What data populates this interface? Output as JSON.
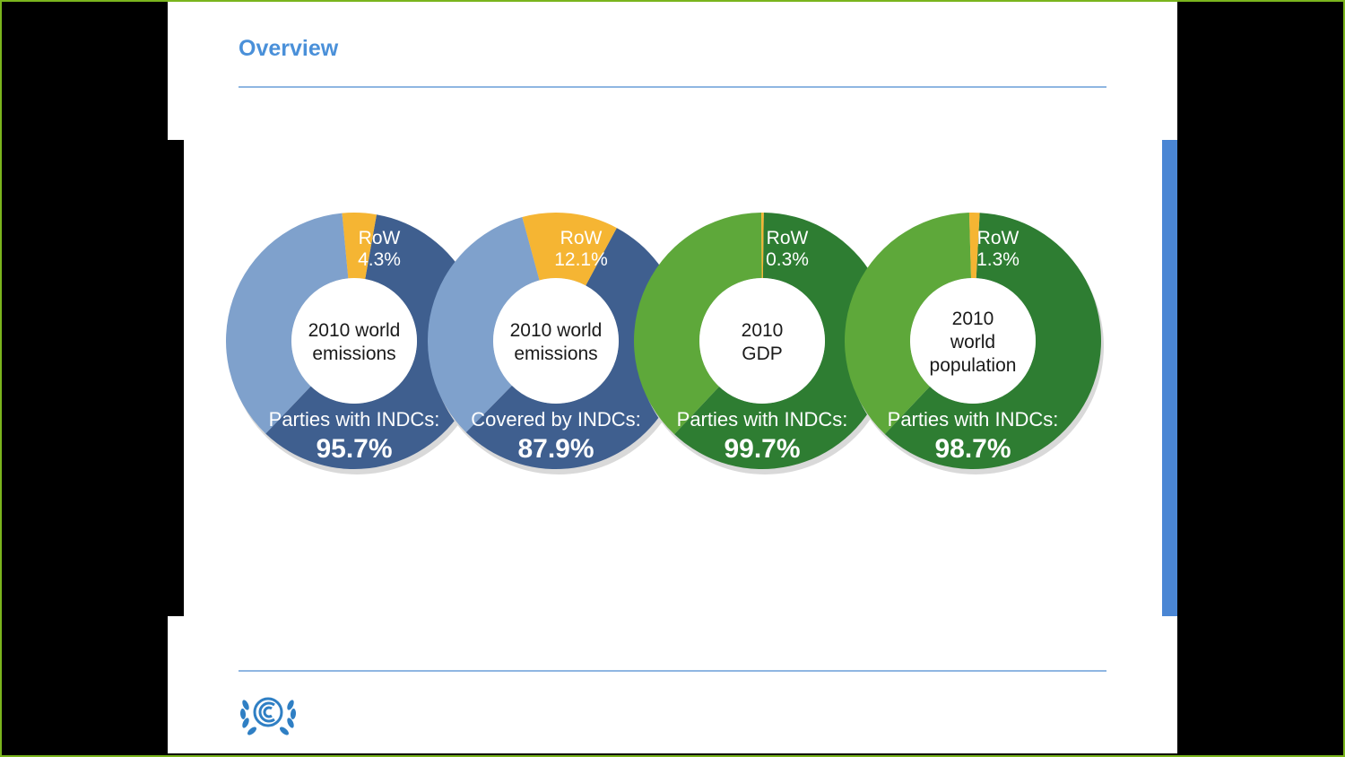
{
  "slide": {
    "title": "Overview"
  },
  "colors": {
    "accent": "#4a90d9",
    "row": "#f5b533",
    "blue_main": "#3f5f8f",
    "blue_light": "#7fa1cc",
    "green_dark": "#2e7d32",
    "green_light": "#5ea83a"
  },
  "chart_data": [
    {
      "type": "pie",
      "center_label": [
        "2010 world",
        "emissions"
      ],
      "caption": "Parties with INDCs:",
      "caption_value": "95.7%",
      "slices": [
        {
          "label": "Parties with INDCs",
          "value": 95.7
        },
        {
          "label": "RoW",
          "value": 4.3,
          "text": [
            "RoW",
            "4.3%"
          ]
        }
      ],
      "palette": "blue"
    },
    {
      "type": "pie",
      "center_label": [
        "2010 world",
        "emissions"
      ],
      "caption": "Covered by INDCs:",
      "caption_value": "87.9%",
      "slices": [
        {
          "label": "Covered by INDCs",
          "value": 87.9
        },
        {
          "label": "RoW",
          "value": 12.1,
          "text": [
            "RoW",
            "12.1%"
          ]
        }
      ],
      "palette": "blue"
    },
    {
      "type": "pie",
      "center_label": [
        "2010",
        "GDP"
      ],
      "caption": "Parties with INDCs:",
      "caption_value": "99.7%",
      "slices": [
        {
          "label": "Parties with INDCs",
          "value": 99.7
        },
        {
          "label": "RoW",
          "value": 0.3,
          "text": [
            "RoW",
            "0.3%"
          ]
        }
      ],
      "palette": "green"
    },
    {
      "type": "pie",
      "center_label": [
        "2010",
        "world",
        "population"
      ],
      "caption": "Parties with INDCs:",
      "caption_value": "98.7%",
      "slices": [
        {
          "label": "Parties with INDCs",
          "value": 98.7
        },
        {
          "label": "RoW",
          "value": 1.3,
          "text": [
            "RoW",
            "1.3%"
          ]
        }
      ],
      "palette": "green"
    }
  ],
  "footer": {
    "logo_icon": "unfccc-logo-icon"
  }
}
